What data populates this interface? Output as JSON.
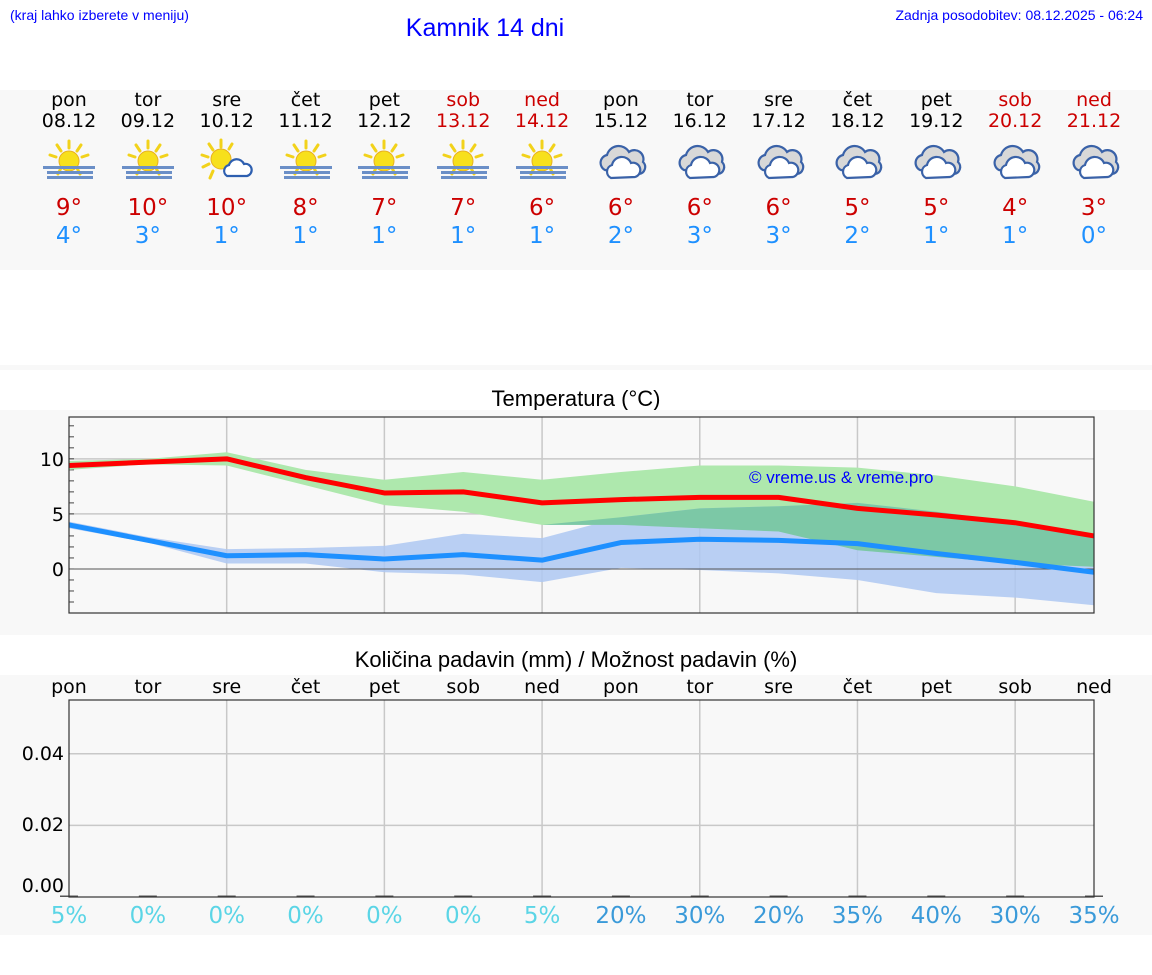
{
  "header": {
    "hint": "(kraj lahko izberete v meniju)",
    "title": "Kamnik 14 dni",
    "updated": "Zadnja posodobitev: 08.12.2025 - 06:24"
  },
  "colors": {
    "link_blue": "#0000ff",
    "max_temp": "#cc0000",
    "min_temp": "#1e90ff",
    "weekend": "#cc0000",
    "max_band": "#aee8ad",
    "min_band": "#aec8f2",
    "overlap_band": "#7cc8a6",
    "pct_low": "#5bd5e6",
    "pct_high": "#3a9ad9",
    "panel_bg": "#f8f8f8"
  },
  "forecast": {
    "days": [
      {
        "name": "pon",
        "date": "08.12",
        "icon": "sun-fog-icon",
        "max": "9°",
        "min": "4°",
        "weekend": false
      },
      {
        "name": "tor",
        "date": "09.12",
        "icon": "sun-fog-icon",
        "max": "10°",
        "min": "3°",
        "weekend": false
      },
      {
        "name": "sre",
        "date": "10.12",
        "icon": "sun-cloud-icon",
        "max": "10°",
        "min": "1°",
        "weekend": false
      },
      {
        "name": "čet",
        "date": "11.12",
        "icon": "sun-fog-icon",
        "max": "8°",
        "min": "1°",
        "weekend": false
      },
      {
        "name": "pet",
        "date": "12.12",
        "icon": "sun-fog-icon",
        "max": "7°",
        "min": "1°",
        "weekend": false
      },
      {
        "name": "sob",
        "date": "13.12",
        "icon": "sun-fog-icon",
        "max": "7°",
        "min": "1°",
        "weekend": true
      },
      {
        "name": "ned",
        "date": "14.12",
        "icon": "sun-fog-icon",
        "max": "6°",
        "min": "1°",
        "weekend": true
      },
      {
        "name": "pon",
        "date": "15.12",
        "icon": "cloudy-icon",
        "max": "6°",
        "min": "2°",
        "weekend": false
      },
      {
        "name": "tor",
        "date": "16.12",
        "icon": "cloudy-icon",
        "max": "6°",
        "min": "3°",
        "weekend": false
      },
      {
        "name": "sre",
        "date": "17.12",
        "icon": "cloudy-icon",
        "max": "6°",
        "min": "3°",
        "weekend": false
      },
      {
        "name": "čet",
        "date": "18.12",
        "icon": "cloudy-icon",
        "max": "5°",
        "min": "2°",
        "weekend": false
      },
      {
        "name": "pet",
        "date": "19.12",
        "icon": "cloudy-icon",
        "max": "5°",
        "min": "1°",
        "weekend": false
      },
      {
        "name": "sob",
        "date": "20.12",
        "icon": "cloudy-icon",
        "max": "4°",
        "min": "1°",
        "weekend": true
      },
      {
        "name": "ned",
        "date": "21.12",
        "icon": "cloudy-icon",
        "max": "3°",
        "min": "0°",
        "weekend": true
      }
    ]
  },
  "temp_chart": {
    "title": "Temperatura (°C)",
    "watermark": "© vreme.us & vreme.pro",
    "yticks": [
      "10",
      "5",
      "0"
    ]
  },
  "precip_chart": {
    "title": "Količina padavin (mm) / Možnost padavin (%)",
    "day_labels": [
      "pon",
      "tor",
      "sre",
      "čet",
      "pet",
      "sob",
      "ned",
      "pon",
      "tor",
      "sre",
      "čet",
      "pet",
      "sob",
      "ned"
    ],
    "yticks": [
      "0.04",
      "0.02",
      "0.00"
    ],
    "probabilities": [
      "5%",
      "0%",
      "0%",
      "0%",
      "0%",
      "0%",
      "5%",
      "20%",
      "30%",
      "20%",
      "35%",
      "40%",
      "30%",
      "35%"
    ]
  },
  "chart_data": [
    {
      "type": "line",
      "title": "Temperatura (°C)",
      "xlabel": "",
      "ylabel": "°C",
      "categories": [
        "08.12",
        "09.12",
        "10.12",
        "11.12",
        "12.12",
        "13.12",
        "14.12",
        "15.12",
        "16.12",
        "17.12",
        "18.12",
        "19.12",
        "20.12",
        "21.12"
      ],
      "ylim": [
        -4,
        13.8
      ],
      "grid": true,
      "series": [
        {
          "name": "max",
          "color": "#ff0000",
          "values": [
            9.4,
            9.7,
            10.0,
            8.3,
            6.9,
            7.0,
            6.0,
            6.3,
            6.5,
            6.5,
            5.5,
            4.9,
            4.2,
            3.0
          ]
        },
        {
          "name": "min",
          "color": "#1e90ff",
          "values": [
            4.0,
            2.6,
            1.2,
            1.3,
            0.9,
            1.3,
            0.8,
            2.4,
            2.7,
            2.6,
            2.3,
            1.4,
            0.6,
            -0.3
          ]
        },
        {
          "name": "max_range_upper",
          "values": [
            9.8,
            10.0,
            10.6,
            9.0,
            8.1,
            8.8,
            8.1,
            8.8,
            9.4,
            9.4,
            9.2,
            8.5,
            7.5,
            6.1
          ]
        },
        {
          "name": "max_range_lower",
          "values": [
            9.0,
            9.5,
            9.4,
            7.6,
            5.8,
            5.2,
            4.0,
            4.0,
            3.7,
            3.4,
            1.7,
            1.1,
            0.5,
            0.2
          ]
        },
        {
          "name": "min_range_upper",
          "values": [
            4.3,
            2.9,
            1.8,
            1.9,
            2.1,
            3.2,
            2.8,
            4.7,
            5.5,
            5.7,
            6.0,
            5.2,
            4.3,
            2.9
          ]
        },
        {
          "name": "min_range_lower",
          "values": [
            3.7,
            2.4,
            0.5,
            0.5,
            -0.3,
            -0.5,
            -1.2,
            0.1,
            -0.1,
            -0.4,
            -1.0,
            -2.2,
            -2.6,
            -3.3
          ]
        }
      ]
    },
    {
      "type": "bar",
      "title": "Količina padavin (mm) / Možnost padavin (%)",
      "categories": [
        "pon",
        "tor",
        "sre",
        "čet",
        "pet",
        "sob",
        "ned",
        "pon",
        "tor",
        "sre",
        "čet",
        "pet",
        "sob",
        "ned"
      ],
      "values": [
        0,
        0,
        0,
        0,
        0,
        0,
        0,
        0,
        0,
        0,
        0,
        0,
        0,
        0
      ],
      "probability_pct": [
        5,
        0,
        0,
        0,
        0,
        0,
        5,
        20,
        30,
        20,
        35,
        40,
        30,
        35
      ],
      "ylabel": "mm",
      "ylim": [
        0,
        0.055
      ],
      "yticks": [
        0.0,
        0.02,
        0.04
      ],
      "grid": true
    }
  ]
}
